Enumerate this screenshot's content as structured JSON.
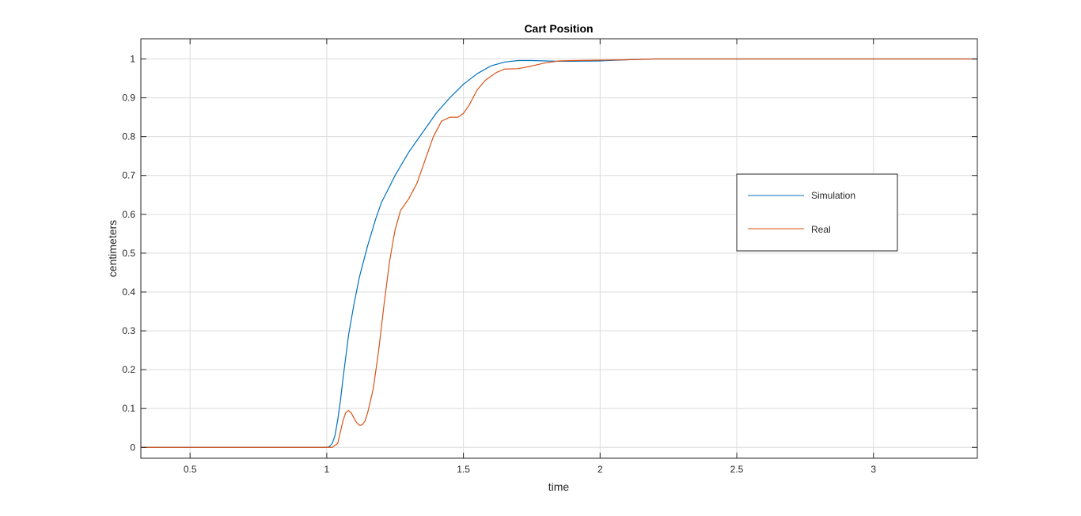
{
  "chart_data": {
    "type": "line",
    "title": "Cart Position",
    "xlabel": "time",
    "ylabel": "centimeters",
    "xlim": [
      0.32,
      3.38
    ],
    "ylim": [
      -0.028,
      1.052
    ],
    "x_ticks": [
      0.5,
      1,
      1.5,
      2,
      2.5,
      3
    ],
    "x_tick_labels": [
      "0.5",
      "1",
      "1.5",
      "2",
      "2.5",
      "3"
    ],
    "y_ticks": [
      0,
      0.1,
      0.2,
      0.3,
      0.4,
      0.5,
      0.6,
      0.7,
      0.8,
      0.9,
      1
    ],
    "y_tick_labels": [
      "0",
      "0.1",
      "0.2",
      "0.3",
      "0.4",
      "0.5",
      "0.6",
      "0.7",
      "0.8",
      "0.9",
      "1"
    ],
    "grid": true,
    "legend_position": "right",
    "series": [
      {
        "name": "Simulation",
        "color": "#0072BD",
        "x": [
          0.32,
          1.0,
          1.01,
          1.02,
          1.03,
          1.04,
          1.05,
          1.06,
          1.08,
          1.1,
          1.12,
          1.15,
          1.18,
          1.2,
          1.25,
          1.3,
          1.35,
          1.4,
          1.45,
          1.5,
          1.55,
          1.6,
          1.65,
          1.7,
          1.75,
          1.8,
          1.85,
          1.9,
          2.0,
          2.1,
          2.2,
          2.5,
          3.0,
          3.38
        ],
        "y": [
          0,
          0,
          0.002,
          0.01,
          0.03,
          0.07,
          0.12,
          0.18,
          0.29,
          0.37,
          0.44,
          0.52,
          0.59,
          0.63,
          0.7,
          0.76,
          0.81,
          0.86,
          0.9,
          0.935,
          0.962,
          0.982,
          0.992,
          0.996,
          0.996,
          0.995,
          0.994,
          0.994,
          0.995,
          0.998,
          1.0,
          1.0,
          1.0,
          1.0
        ]
      },
      {
        "name": "Real",
        "color": "#D95319",
        "x": [
          0.32,
          1.02,
          1.04,
          1.05,
          1.06,
          1.07,
          1.08,
          1.09,
          1.1,
          1.11,
          1.12,
          1.13,
          1.14,
          1.15,
          1.17,
          1.19,
          1.21,
          1.23,
          1.25,
          1.27,
          1.3,
          1.33,
          1.36,
          1.39,
          1.42,
          1.45,
          1.48,
          1.5,
          1.52,
          1.55,
          1.58,
          1.62,
          1.65,
          1.7,
          1.75,
          1.8,
          1.85,
          1.9,
          2.0,
          2.1,
          2.2,
          2.5,
          3.0,
          3.38
        ],
        "y": [
          0,
          0,
          0.01,
          0.04,
          0.07,
          0.09,
          0.095,
          0.088,
          0.075,
          0.063,
          0.057,
          0.058,
          0.068,
          0.09,
          0.15,
          0.25,
          0.37,
          0.48,
          0.56,
          0.61,
          0.64,
          0.68,
          0.74,
          0.8,
          0.84,
          0.85,
          0.85,
          0.86,
          0.88,
          0.92,
          0.945,
          0.965,
          0.974,
          0.975,
          0.982,
          0.99,
          0.995,
          0.996,
          0.997,
          0.998,
          1.0,
          1.0,
          1.0,
          1.0
        ]
      }
    ]
  }
}
